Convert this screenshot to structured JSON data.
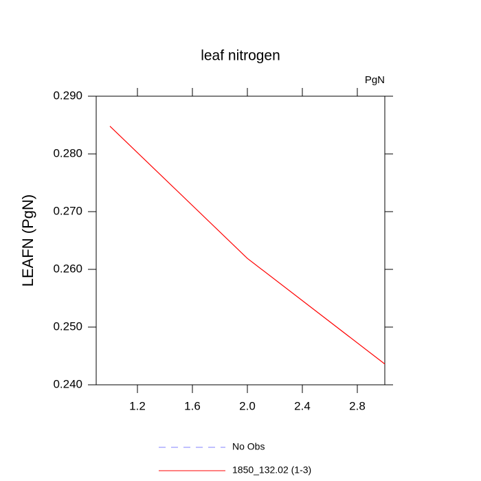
{
  "chart_data": {
    "type": "line",
    "title": "leaf nitrogen",
    "units_label": "PgN",
    "y_label": "LEAFN  (PgN)",
    "x": [
      1,
      2,
      3
    ],
    "series": [
      {
        "name": "No Obs",
        "color": "#8080ff",
        "dash": true,
        "values": [
          null,
          null,
          null
        ]
      },
      {
        "name": "1850_132.02 (1-3)",
        "color": "#ff0000",
        "dash": false,
        "values": [
          0.2848,
          0.2619,
          0.2436
        ]
      }
    ],
    "xlim": [
      0.9,
      3.0
    ],
    "xticks": [
      1.2,
      1.6,
      {
        "value": 2.0,
        "label": "2.0"
      },
      2.4,
      2.8
    ],
    "ylim": [
      0.24,
      0.29
    ],
    "yticks": [
      {
        "value": 0.24,
        "label": "0.240"
      },
      {
        "value": 0.25,
        "label": "0.250"
      },
      {
        "value": 0.26,
        "label": "0.260"
      },
      {
        "value": 0.27,
        "label": "0.270"
      },
      {
        "value": 0.28,
        "label": "0.280"
      },
      {
        "value": 0.29,
        "label": "0.290"
      }
    ],
    "grid": false
  }
}
